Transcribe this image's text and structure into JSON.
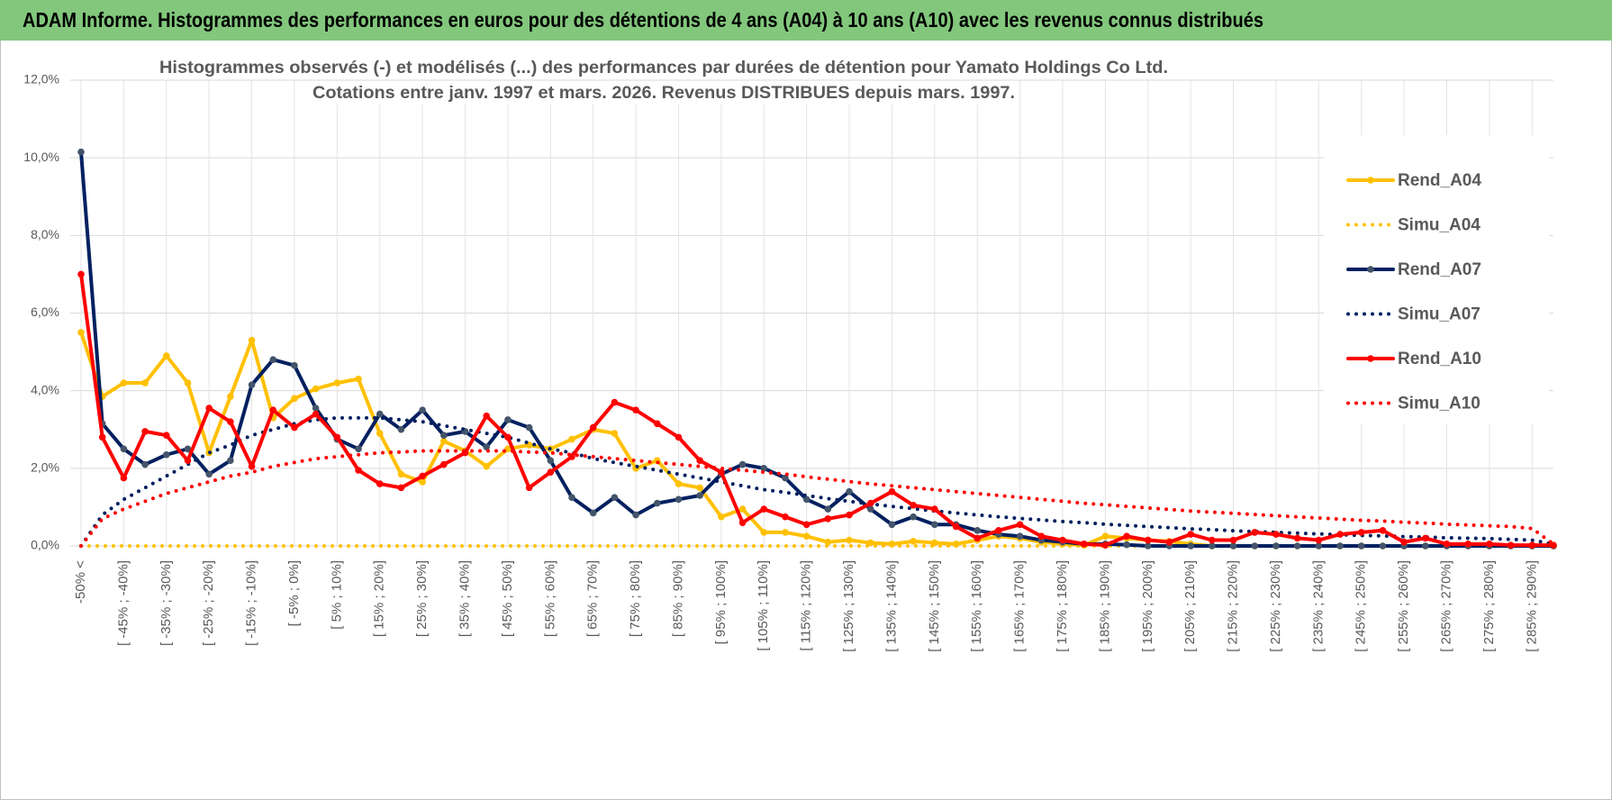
{
  "chart_data": {
    "type": "line",
    "header": "ADAM Informe. Histogrammes des performances en euros pour des détentions de 4 ans (A04) à 10 ans (A10) avec les revenus connus distribués",
    "title": "Histogrammes observés (-) et modélisés (...) des performances par durées de détention pour Yamato Holdings Co Ltd.",
    "subtitle": "Cotations entre janv. 1997 et mars. 2026. Revenus DISTRIBUES depuis mars. 1997.",
    "categories": [
      "-50% <",
      null,
      "[ -45% ; -40%]",
      null,
      "[ -35% ; -30%]",
      null,
      "[ -25% ; -20%]",
      null,
      "[ -15% ; -10%]",
      null,
      "[ -5% ; 0%]",
      null,
      "[ 5% ; 10%]",
      null,
      "[ 15% ; 20%]",
      null,
      "[ 25% ; 30%]",
      null,
      "[ 35% ; 40%]",
      null,
      "[ 45% ; 50%]",
      null,
      "[ 55% ; 60%]",
      null,
      "[ 65% ; 70%]",
      null,
      "[ 75% ; 80%]",
      null,
      "[ 85% ; 90%]",
      null,
      "[ 95% ; 100%]",
      null,
      "[ 105% ; 110%]",
      null,
      "[ 115% ; 120%]",
      null,
      "[ 125% ; 130%]",
      null,
      "[ 135% ; 140%]",
      null,
      "[ 145% ; 150%]",
      null,
      "[ 155% ; 160%]",
      null,
      "[ 165% ; 170%]",
      null,
      "[ 175% ; 180%]",
      null,
      "[ 185% ; 190%]",
      null,
      "[ 195% ; 200%]",
      null,
      "[ 205% ; 210%]",
      null,
      "[ 215% ; 220%]",
      null,
      "[ 225% ; 230%]",
      null,
      "[ 235% ; 240%]",
      null,
      "[ 245% ; 250%]",
      null,
      "[ 255% ; 260%]",
      null,
      "[ 265% ; 270%]",
      null,
      "[ 275% ; 280%]",
      null,
      "[ 285% ; 290%]",
      null
    ],
    "series": [
      {
        "name": "Rend_A04",
        "color": "#ffc000",
        "line_style": "solid",
        "markers": true,
        "values": [
          5.5,
          3.85,
          4.2,
          4.2,
          4.9,
          4.2,
          2.4,
          3.85,
          5.3,
          3.3,
          3.8,
          4.05,
          4.2,
          4.3,
          2.9,
          1.85,
          1.65,
          2.7,
          2.45,
          2.05,
          2.5,
          2.6,
          2.5,
          2.75,
          3.0,
          2.9,
          2.0,
          2.2,
          1.6,
          1.5,
          0.75,
          0.95,
          0.35,
          0.35,
          0.25,
          0.1,
          0.15,
          0.08,
          0.05,
          0.12,
          0.08,
          0.05,
          0.15,
          0.25,
          0.2,
          0.1,
          0.05,
          0.02,
          0.25,
          0.2,
          0.15,
          0.12,
          0.05,
          0,
          0,
          0,
          0,
          0,
          0,
          0,
          0,
          0,
          0,
          0,
          0,
          0,
          0,
          0,
          0,
          0
        ]
      },
      {
        "name": "Simu_A04",
        "color": "#ffc000",
        "line_style": "dotted",
        "markers": false,
        "values": [
          0,
          0,
          0,
          0,
          0,
          0,
          0,
          0,
          0,
          0,
          0,
          0,
          0,
          0,
          0,
          0,
          0,
          0,
          0,
          0,
          0,
          0,
          0,
          0,
          0,
          0,
          0,
          0,
          0,
          0,
          0,
          0,
          0,
          0,
          0,
          0,
          0,
          0,
          0,
          0,
          0,
          0,
          0,
          0,
          0,
          0,
          0,
          0,
          0,
          0,
          0,
          0,
          0,
          0,
          0,
          0,
          0,
          0,
          0,
          0,
          0,
          0,
          0,
          0,
          0,
          0,
          0,
          0,
          0,
          0
        ]
      },
      {
        "name": "Rend_A07",
        "color": "#002060",
        "line_style": "solid",
        "markers": true,
        "values": [
          10.15,
          3.15,
          2.5,
          2.1,
          2.35,
          2.5,
          1.85,
          2.2,
          4.15,
          4.8,
          4.65,
          3.55,
          2.75,
          2.5,
          3.4,
          3.0,
          3.5,
          2.85,
          2.95,
          2.55,
          3.25,
          3.05,
          2.2,
          1.25,
          0.85,
          1.25,
          0.8,
          1.1,
          1.2,
          1.3,
          1.85,
          2.1,
          2.0,
          1.75,
          1.2,
          0.95,
          1.4,
          0.95,
          0.55,
          0.75,
          0.55,
          0.55,
          0.4,
          0.3,
          0.25,
          0.15,
          0.1,
          0.05,
          0.05,
          0.03,
          0,
          0,
          0,
          0,
          0,
          0,
          0,
          0,
          0,
          0,
          0,
          0,
          0,
          0,
          0,
          0,
          0,
          0,
          0,
          0
        ]
      },
      {
        "name": "Simu_A07",
        "color": "#002060",
        "line_style": "dotted",
        "markers": false,
        "values": [
          0,
          0.8,
          1.2,
          1.5,
          1.8,
          2.1,
          2.4,
          2.6,
          2.85,
          3.0,
          3.15,
          3.25,
          3.3,
          3.3,
          3.3,
          3.25,
          3.2,
          3.1,
          3.0,
          2.9,
          2.8,
          2.65,
          2.5,
          2.4,
          2.25,
          2.15,
          2.05,
          1.95,
          1.85,
          1.75,
          1.65,
          1.55,
          1.45,
          1.38,
          1.3,
          1.22,
          1.15,
          1.08,
          1.02,
          0.96,
          0.9,
          0.85,
          0.8,
          0.75,
          0.71,
          0.67,
          0.63,
          0.6,
          0.56,
          0.53,
          0.5,
          0.47,
          0.44,
          0.42,
          0.39,
          0.37,
          0.35,
          0.33,
          0.31,
          0.29,
          0.27,
          0.26,
          0.24,
          0.23,
          0.21,
          0.2,
          0.19,
          0.17,
          0.15,
          0.05
        ]
      },
      {
        "name": "Rend_A10",
        "color": "#ff0000",
        "line_style": "solid",
        "markers": true,
        "values": [
          7.0,
          2.8,
          1.75,
          2.95,
          2.85,
          2.2,
          3.55,
          3.2,
          2.05,
          3.5,
          3.05,
          3.4,
          2.8,
          1.95,
          1.6,
          1.5,
          1.8,
          2.1,
          2.4,
          3.35,
          2.8,
          1.5,
          1.9,
          2.3,
          3.05,
          3.7,
          3.5,
          3.15,
          2.8,
          2.2,
          1.9,
          0.6,
          0.95,
          0.75,
          0.55,
          0.7,
          0.8,
          1.1,
          1.4,
          1.05,
          0.95,
          0.5,
          0.2,
          0.4,
          0.55,
          0.25,
          0.15,
          0.05,
          0.02,
          0.25,
          0.15,
          0.1,
          0.3,
          0.15,
          0.15,
          0.35,
          0.3,
          0.2,
          0.15,
          0.3,
          0.35,
          0.4,
          0.1,
          0.2,
          0.05,
          0.05,
          0.05,
          0.02,
          0.02,
          0.02
        ]
      },
      {
        "name": "Simu_A10",
        "color": "#ff0000",
        "line_style": "dotted",
        "markers": false,
        "values": [
          0,
          0.7,
          0.95,
          1.15,
          1.35,
          1.5,
          1.65,
          1.8,
          1.9,
          2.05,
          2.15,
          2.25,
          2.3,
          2.35,
          2.4,
          2.42,
          2.45,
          2.45,
          2.45,
          2.45,
          2.45,
          2.42,
          2.4,
          2.35,
          2.3,
          2.25,
          2.2,
          2.15,
          2.1,
          2.05,
          2.0,
          1.95,
          1.9,
          1.85,
          1.78,
          1.72,
          1.66,
          1.6,
          1.55,
          1.5,
          1.45,
          1.4,
          1.35,
          1.3,
          1.25,
          1.2,
          1.15,
          1.1,
          1.06,
          1.02,
          0.98,
          0.94,
          0.9,
          0.87,
          0.84,
          0.81,
          0.78,
          0.75,
          0.72,
          0.69,
          0.66,
          0.64,
          0.61,
          0.59,
          0.56,
          0.54,
          0.52,
          0.5,
          0.45,
          0.05
        ]
      }
    ],
    "ylim": [
      0,
      12
    ],
    "yticks": [
      {
        "value": 0,
        "label": "0,0%"
      },
      {
        "value": 2,
        "label": "2,0%"
      },
      {
        "value": 4,
        "label": "4,0%"
      },
      {
        "value": 6,
        "label": "6,0%"
      },
      {
        "value": 8,
        "label": "8,0%"
      },
      {
        "value": 10,
        "label": "10,0%"
      },
      {
        "value": 12,
        "label": "12,0%"
      }
    ],
    "grid": true,
    "legend": "right"
  }
}
